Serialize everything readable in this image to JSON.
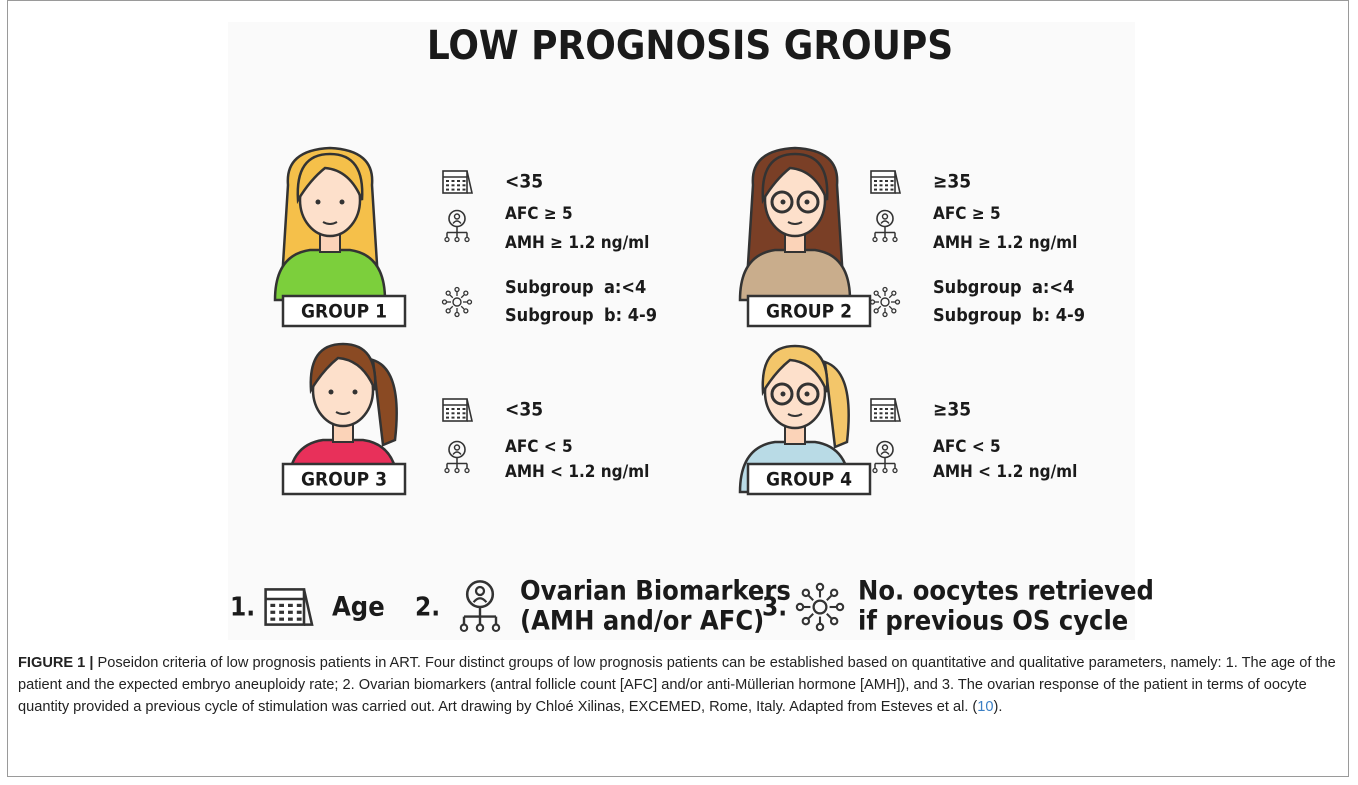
{
  "figure": {
    "title": "LOW PROGNOSIS GROUPS",
    "groups": [
      {
        "label": "GROUP 1",
        "age": "<35",
        "afc": "AFC ≥ 5",
        "amh": "AMH ≥ 1.2 ng/ml",
        "subgroups": [
          {
            "name": "Subgroup",
            "range": "a:<4"
          },
          {
            "name": "Subgroup",
            "range": "b: 4-9"
          }
        ]
      },
      {
        "label": "GROUP 2",
        "age": "≥35",
        "afc": "AFC ≥ 5",
        "amh": "AMH ≥ 1.2 ng/ml",
        "subgroups": [
          {
            "name": "Subgroup",
            "range": "a:<4"
          },
          {
            "name": "Subgroup",
            "range": "b: 4-9"
          }
        ]
      },
      {
        "label": "GROUP 3",
        "age": "<35",
        "afc": "AFC < 5",
        "amh": "AMH < 1.2 ng/ml",
        "subgroups": []
      },
      {
        "label": "GROUP 4",
        "age": "≥35",
        "afc": "AFC < 5",
        "amh": "AMH < 1.2 ng/ml",
        "subgroups": []
      }
    ],
    "legend": [
      {
        "number": "1.",
        "lines": [
          "Age"
        ]
      },
      {
        "number": "2.",
        "lines": [
          "Ovarian Biomarkers",
          "(AMH and/or AFC)"
        ]
      },
      {
        "number": "3.",
        "lines": [
          "No. oocytes retrieved",
          "if previous OS cycle"
        ]
      }
    ]
  },
  "caption": {
    "label": "FIGURE 1 |",
    "text_before": "Poseidon criteria of low prognosis patients in ART. Four distinct groups of low prognosis patients can be established based on quantitative and qualitative parameters, namely: 1. The age of the patient and the expected embryo aneuploidy rate; 2. Ovarian biomarkers (antral follicle count [AFC] and/or anti-Müllerian hormone [AMH]), and 3. The ovarian response of the patient in terms of oocyte quantity provided a previous cycle of stimulation was carried out. Art drawing by Chloé Xilinas, EXCEMED, Rome, Italy. Adapted from Esteves et al. (",
    "reference": "10",
    "text_after": ")."
  }
}
